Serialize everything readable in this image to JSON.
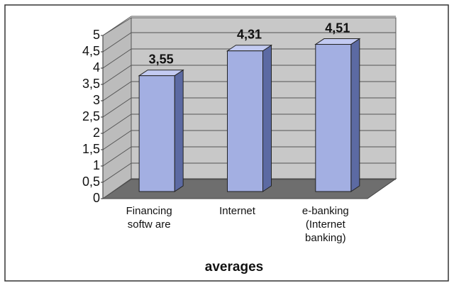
{
  "chart_data": {
    "type": "bar3d",
    "x_label": "averages",
    "categories": [
      "Financing\nsoftw are",
      "Internet",
      "e-banking\n(Internet\nbanking)"
    ],
    "values": [
      3.55,
      4.31,
      4.51
    ],
    "value_labels": [
      "3,55",
      "4,31",
      "4,51"
    ],
    "color": "#a3afe2",
    "ylim": [
      0,
      5
    ],
    "yticks": [
      0,
      {
        "value": 0.5,
        "label": "0,5"
      },
      1,
      {
        "value": 1.5,
        "label": "1,5"
      },
      2,
      {
        "value": 2.5,
        "label": "2,5"
      },
      3,
      {
        "value": 3.5,
        "label": "3,5"
      },
      4,
      {
        "value": 4.5,
        "label": "4,5"
      },
      5
    ],
    "grid": true
  }
}
